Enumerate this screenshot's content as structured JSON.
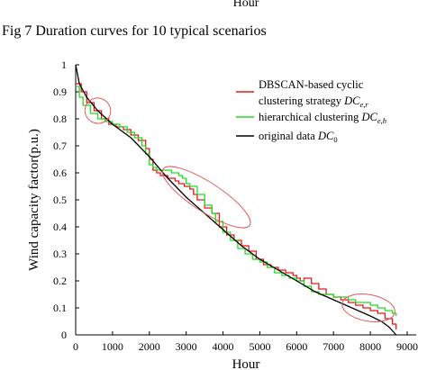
{
  "header": {
    "top_fragment": "Hour",
    "caption": "Fig 7 Duration curves for 10 typical scenarios"
  },
  "chart_data": {
    "type": "line",
    "title": "",
    "xlabel": "Hour",
    "ylabel": "Wind capacity factor(p.u.)",
    "xlim": [
      0,
      9000
    ],
    "ylim": [
      0,
      1
    ],
    "xticks": [
      "0",
      "1000",
      "2000",
      "3000",
      "4000",
      "5000",
      "6000",
      "7000",
      "8000",
      "9000"
    ],
    "yticks": [
      "0",
      "0.1",
      "0.2",
      "0.3",
      "0.4",
      "0.5",
      "0.6",
      "0.7",
      "0.8",
      "0.9",
      "1"
    ],
    "grid": false,
    "legend": "top-right",
    "series": [
      {
        "name": "DBSCAN-based cyclic clustering strategy DC_{e,r}",
        "legend_line1": "DBSCAN-based   cyclic",
        "legend_line2": "clustering strategy ",
        "legend_sym": "DC",
        "legend_sub": "e,r",
        "color": "#e8161b",
        "step": true,
        "x": [
          0,
          150,
          300,
          500,
          700,
          900,
          1100,
          1300,
          1500,
          1700,
          1900,
          2000,
          2100,
          2200,
          2300,
          2500,
          2700,
          2800,
          2950,
          3100,
          3200,
          3300,
          3500,
          3700,
          3900,
          4100,
          4300,
          4500,
          4700,
          4900,
          5100,
          5300,
          5500,
          5700,
          5900,
          6000,
          6100,
          6200,
          6400,
          6600,
          6800,
          7000,
          7200,
          7400,
          7600,
          7800,
          8000,
          8200,
          8400,
          8600,
          8700
        ],
        "y": [
          0.93,
          0.9,
          0.86,
          0.83,
          0.8,
          0.78,
          0.77,
          0.76,
          0.74,
          0.72,
          0.69,
          0.65,
          0.61,
          0.6,
          0.59,
          0.58,
          0.57,
          0.56,
          0.55,
          0.54,
          0.52,
          0.5,
          0.47,
          0.45,
          0.4,
          0.37,
          0.35,
          0.33,
          0.31,
          0.28,
          0.26,
          0.25,
          0.24,
          0.23,
          0.22,
          0.21,
          0.2,
          0.21,
          0.19,
          0.17,
          0.15,
          0.14,
          0.13,
          0.12,
          0.11,
          0.1,
          0.09,
          0.08,
          0.06,
          0.04,
          0.02
        ]
      },
      {
        "name": "hierarchical clustering DC_{e,h}",
        "legend_line1": "hierarchical clustering ",
        "legend_sym": "DC",
        "legend_sub": "e,h",
        "color": "#22dd22",
        "step": true,
        "x": [
          0,
          100,
          200,
          400,
          600,
          800,
          1000,
          1200,
          1400,
          1600,
          1800,
          1900,
          2000,
          2100,
          2200,
          2400,
          2600,
          2800,
          2900,
          3000,
          3100,
          3300,
          3500,
          3700,
          3800,
          4000,
          4200,
          4400,
          4600,
          4800,
          5000,
          5200,
          5400,
          5600,
          5800,
          6000,
          6200,
          6400,
          6600,
          6800,
          7000,
          7200,
          7400,
          7600,
          7800,
          8000,
          8200,
          8400,
          8600,
          8700
        ],
        "y": [
          0.92,
          0.88,
          0.85,
          0.82,
          0.8,
          0.79,
          0.78,
          0.77,
          0.75,
          0.73,
          0.7,
          0.67,
          0.63,
          0.62,
          0.61,
          0.61,
          0.6,
          0.59,
          0.58,
          0.56,
          0.55,
          0.52,
          0.48,
          0.45,
          0.42,
          0.38,
          0.35,
          0.32,
          0.3,
          0.28,
          0.27,
          0.25,
          0.23,
          0.22,
          0.21,
          0.2,
          0.18,
          0.16,
          0.15,
          0.15,
          0.14,
          0.14,
          0.13,
          0.12,
          0.12,
          0.11,
          0.1,
          0.09,
          0.08,
          0.07
        ]
      },
      {
        "name": "original data DC_0",
        "legend_line1": "original data ",
        "legend_sym": "DC",
        "legend_sub": "0",
        "color": "#000000",
        "step": false,
        "x": [
          0,
          100,
          300,
          600,
          1000,
          1500,
          2000,
          2500,
          3000,
          3500,
          4000,
          4500,
          5000,
          5500,
          6000,
          6500,
          7000,
          7500,
          8000,
          8300,
          8500,
          8600,
          8700
        ],
        "y": [
          1.0,
          0.93,
          0.88,
          0.83,
          0.78,
          0.73,
          0.66,
          0.58,
          0.51,
          0.45,
          0.39,
          0.33,
          0.28,
          0.24,
          0.2,
          0.16,
          0.13,
          0.1,
          0.07,
          0.05,
          0.03,
          0.015,
          0.0
        ]
      }
    ],
    "annotations": [
      {
        "shape": "ellipse",
        "color": "#e05a5a",
        "cx": 600,
        "cy": 0.83,
        "rx": 700,
        "ry": 0.04,
        "angle": 28
      },
      {
        "shape": "ellipse",
        "color": "#e05a5a",
        "cx": 3550,
        "cy": 0.51,
        "rx": 2800,
        "ry": 0.055,
        "angle": 33
      },
      {
        "shape": "ellipse",
        "color": "#e05a5a",
        "cx": 7950,
        "cy": 0.1,
        "rx": 1450,
        "ry": 0.045,
        "angle": 10
      }
    ]
  }
}
